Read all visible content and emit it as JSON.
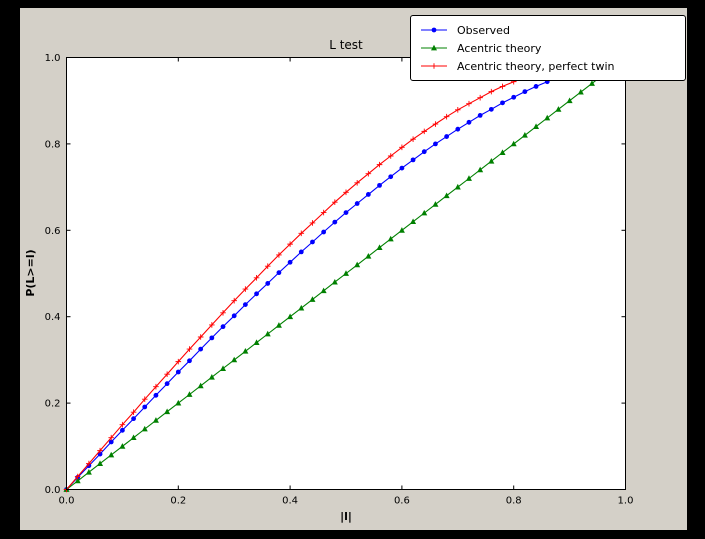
{
  "window": {
    "outer_bg": "#000000",
    "figure_bg": "#d4d0c8",
    "plot_bg": "#ffffff",
    "axis_color": "#000000"
  },
  "chart_data": {
    "type": "line",
    "title": "L test",
    "xlabel": "|l|",
    "ylabel": "P(L>=l)",
    "xlim": [
      0,
      1
    ],
    "ylim": [
      0,
      1
    ],
    "xticks": [
      "0.0",
      "0.2",
      "0.4",
      "0.6",
      "0.8",
      "1.0"
    ],
    "yticks": [
      "0.0",
      "0.2",
      "0.4",
      "0.6",
      "0.8",
      "1.0"
    ],
    "grid": false,
    "legend_position": "upper right",
    "series": [
      {
        "name": "Observed",
        "color": "#0000ff",
        "marker": "circle",
        "x": [
          0,
          0.02,
          0.04,
          0.06,
          0.08,
          0.1,
          0.12,
          0.14,
          0.16,
          0.18,
          0.2,
          0.22,
          0.24,
          0.26,
          0.28,
          0.3,
          0.32,
          0.34,
          0.36,
          0.38,
          0.4,
          0.42,
          0.44,
          0.46,
          0.48,
          0.5,
          0.52,
          0.54,
          0.56,
          0.58,
          0.6,
          0.62,
          0.64,
          0.66,
          0.68,
          0.7,
          0.72,
          0.74,
          0.76,
          0.78,
          0.8,
          0.82,
          0.84,
          0.86
        ],
        "y": [
          0.0,
          0.028,
          0.055,
          0.082,
          0.11,
          0.137,
          0.164,
          0.191,
          0.218,
          0.245,
          0.272,
          0.298,
          0.325,
          0.351,
          0.377,
          0.402,
          0.428,
          0.453,
          0.477,
          0.502,
          0.526,
          0.55,
          0.573,
          0.596,
          0.619,
          0.641,
          0.662,
          0.683,
          0.704,
          0.724,
          0.744,
          0.763,
          0.782,
          0.8,
          0.817,
          0.834,
          0.85,
          0.866,
          0.88,
          0.895,
          0.908,
          0.921,
          0.933,
          0.944
        ]
      },
      {
        "name": "Acentric theory",
        "color": "#008000",
        "marker": "triangle",
        "x": [
          0,
          0.02,
          0.04,
          0.06,
          0.08,
          0.1,
          0.12,
          0.14,
          0.16,
          0.18,
          0.2,
          0.22,
          0.24,
          0.26,
          0.28,
          0.3,
          0.32,
          0.34,
          0.36,
          0.38,
          0.4,
          0.42,
          0.44,
          0.46,
          0.48,
          0.5,
          0.52,
          0.54,
          0.56,
          0.58,
          0.6,
          0.62,
          0.64,
          0.66,
          0.68,
          0.7,
          0.72,
          0.74,
          0.76,
          0.78,
          0.8,
          0.82,
          0.84,
          0.86,
          0.88,
          0.9,
          0.92,
          0.94,
          0.96,
          0.98,
          1
        ],
        "y": [
          0,
          0.02,
          0.04,
          0.06,
          0.08,
          0.1,
          0.12,
          0.14,
          0.16,
          0.18,
          0.2,
          0.22,
          0.24,
          0.26,
          0.28,
          0.3,
          0.32,
          0.34,
          0.36,
          0.38,
          0.4,
          0.42,
          0.44,
          0.46,
          0.48,
          0.5,
          0.52,
          0.54,
          0.56,
          0.58,
          0.6,
          0.62,
          0.64,
          0.66,
          0.68,
          0.7,
          0.72,
          0.74,
          0.76,
          0.78,
          0.8,
          0.82,
          0.84,
          0.86,
          0.88,
          0.9,
          0.92,
          0.94,
          0.96,
          0.98,
          1
        ]
      },
      {
        "name": "Acentric theory, perfect twin",
        "color": "#ff0000",
        "marker": "plus",
        "x": [
          0,
          0.02,
          0.04,
          0.06,
          0.08,
          0.1,
          0.12,
          0.14,
          0.16,
          0.18,
          0.2,
          0.22,
          0.24,
          0.26,
          0.28,
          0.3,
          0.32,
          0.34,
          0.36,
          0.38,
          0.4,
          0.42,
          0.44,
          0.46,
          0.48,
          0.5,
          0.52,
          0.54,
          0.56,
          0.58,
          0.6,
          0.62,
          0.64,
          0.66,
          0.68,
          0.7,
          0.72,
          0.74,
          0.76,
          0.78,
          0.8,
          0.82,
          0.84,
          0.86,
          0.88,
          0.9,
          0.92,
          0.94,
          0.96,
          0.98,
          1
        ],
        "y": [
          0.0,
          0.03,
          0.06,
          0.09,
          0.12,
          0.15,
          0.179,
          0.209,
          0.238,
          0.267,
          0.296,
          0.325,
          0.353,
          0.381,
          0.409,
          0.437,
          0.464,
          0.49,
          0.517,
          0.543,
          0.568,
          0.593,
          0.617,
          0.641,
          0.665,
          0.688,
          0.71,
          0.731,
          0.752,
          0.772,
          0.792,
          0.811,
          0.829,
          0.846,
          0.863,
          0.879,
          0.893,
          0.907,
          0.921,
          0.933,
          0.944,
          0.954,
          0.964,
          0.972,
          0.979,
          0.986,
          0.991,
          0.995,
          0.998,
          0.999,
          1.0
        ]
      }
    ]
  }
}
